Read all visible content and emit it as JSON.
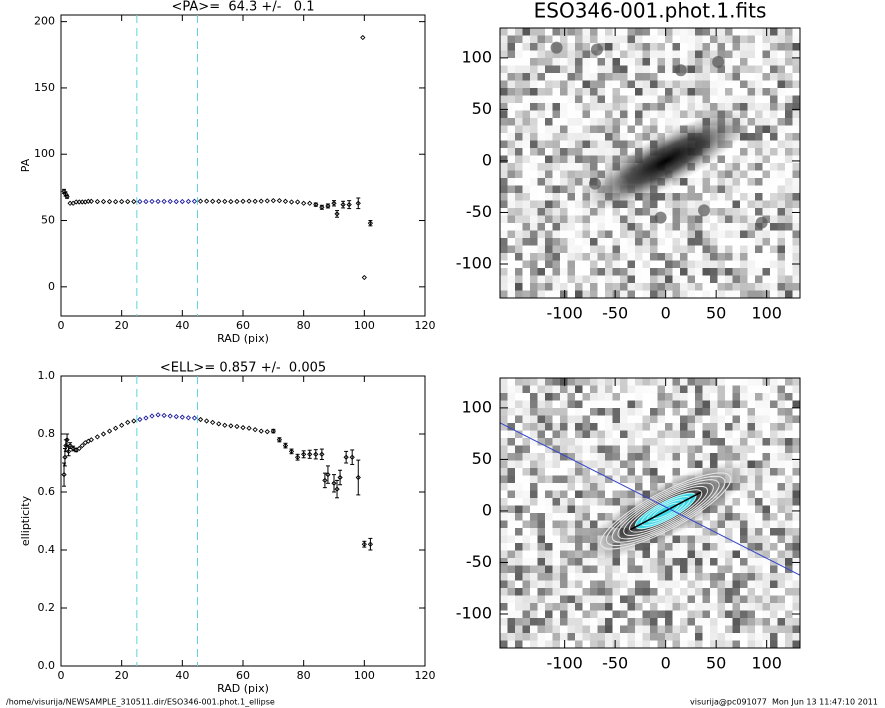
{
  "footer": {
    "left": "/home/visurija/NEWSAMPLE_310511.dir/ESO346-001.phot.1_ellipse",
    "right": "visurija@pc091077  Mon Jun 13 11:47:10 2011"
  },
  "chart_data": [
    {
      "type": "scatter",
      "title": "<PA>=  64.3 +/-   0.1",
      "xlabel": "RAD (pix)",
      "ylabel": "PA",
      "xlim": [
        0,
        120
      ],
      "ylim": [
        -22,
        205
      ],
      "xticks": [
        0,
        20,
        40,
        60,
        80,
        100,
        120
      ],
      "yticks": [
        0,
        50,
        100,
        150,
        200
      ],
      "vlines": [
        25,
        45
      ],
      "vline_color": "#5fd3e0",
      "series": [
        {
          "color": "#000000",
          "x": [
            1,
            1.5,
            2,
            3,
            4,
            5,
            6,
            7,
            8,
            9,
            10,
            12,
            14,
            16,
            18,
            20,
            22,
            24
          ],
          "values": [
            72,
            70,
            68,
            63,
            63,
            64,
            64,
            64,
            64,
            64.5,
            64.5,
            64.3,
            64.3,
            64.3,
            64.2,
            64.3,
            64.3,
            64.3
          ],
          "errors": [
            1.5,
            1.5,
            1.2,
            1,
            1,
            0.8,
            0.8,
            0.8,
            0.6,
            0.6,
            0.6,
            0.5,
            0.5,
            0.5,
            0.5,
            0.5,
            0.5,
            0.5
          ]
        },
        {
          "color": "#1a1aa0",
          "x": [
            26,
            28,
            30,
            32,
            34,
            36,
            38,
            40,
            42,
            44
          ],
          "values": [
            64.3,
            64.3,
            64.4,
            64.4,
            64.4,
            64.4,
            64.3,
            64.3,
            64.4,
            64.5
          ],
          "errors": [
            0.3,
            0.3,
            0.3,
            0.3,
            0.3,
            0.3,
            0.3,
            0.3,
            0.3,
            0.3
          ]
        },
        {
          "color": "#000000",
          "x": [
            46,
            48,
            50,
            52,
            54,
            56,
            58,
            60,
            62,
            64,
            66,
            68,
            70,
            72,
            74,
            76,
            78,
            80,
            82,
            84,
            86,
            88,
            90,
            91,
            93,
            95,
            98,
            99.5,
            100,
            102
          ],
          "values": [
            64.6,
            64.6,
            64.5,
            64.5,
            64.4,
            64.3,
            64.4,
            64.5,
            64.6,
            64.5,
            64.6,
            64.8,
            65,
            65,
            64.5,
            64,
            64,
            63,
            63,
            62,
            60,
            61,
            63,
            55,
            62,
            62,
            63,
            188,
            7,
            48
          ],
          "errors": [
            0.4,
            0.4,
            0.4,
            0.4,
            0.4,
            0.4,
            0.5,
            0.5,
            0.5,
            0.5,
            0.6,
            0.6,
            0.6,
            0.7,
            0.7,
            0.8,
            0.8,
            1,
            1,
            1.2,
            1.5,
            1.5,
            2,
            2.5,
            2.5,
            3,
            4,
            1,
            1,
            2
          ]
        }
      ]
    },
    {
      "type": "scatter",
      "title": "<ELL>= 0.857 +/-  0.005",
      "xlabel": "RAD (pix)",
      "ylabel": "ellipticity",
      "xlim": [
        0,
        120
      ],
      "ylim": [
        0,
        1
      ],
      "xticks": [
        0,
        20,
        40,
        60,
        80,
        100,
        120
      ],
      "yticks": [
        {
          "value": 0,
          "label": "0.0"
        },
        0.2,
        0.4,
        0.6,
        0.8,
        {
          "value": 1,
          "label": "1.0"
        }
      ],
      "vlines": [
        25,
        45
      ],
      "vline_color": "#5fd3e0",
      "series": [
        {
          "color": "#000000",
          "x": [
            1,
            1.3,
            1.6,
            2,
            2.5,
            3,
            4,
            5,
            6,
            7,
            8,
            9,
            10,
            12,
            14,
            16,
            18,
            20,
            22,
            24
          ],
          "values": [
            0.66,
            0.72,
            0.76,
            0.78,
            0.74,
            0.76,
            0.75,
            0.745,
            0.75,
            0.76,
            0.77,
            0.775,
            0.78,
            0.79,
            0.8,
            0.81,
            0.82,
            0.83,
            0.84,
            0.845
          ],
          "errors": [
            0.04,
            0.03,
            0.02,
            0.02,
            0.015,
            0.01,
            0.008,
            0.006,
            0.005,
            0.005,
            0.005,
            0.004,
            0.004,
            0.004,
            0.004,
            0.003,
            0.003,
            0.003,
            0.003,
            0.003
          ]
        },
        {
          "color": "#1a1aa0",
          "x": [
            26,
            28,
            30,
            32,
            34,
            36,
            38,
            40,
            42,
            44
          ],
          "values": [
            0.85,
            0.855,
            0.862,
            0.866,
            0.864,
            0.862,
            0.86,
            0.858,
            0.856,
            0.855
          ],
          "errors": [
            0.003,
            0.003,
            0.003,
            0.003,
            0.003,
            0.003,
            0.003,
            0.003,
            0.003,
            0.003
          ]
        },
        {
          "color": "#000000",
          "x": [
            46,
            48,
            50,
            52,
            54,
            56,
            58,
            60,
            62,
            64,
            66,
            68,
            70,
            72,
            74,
            76,
            78,
            80,
            82,
            84,
            86,
            87,
            88,
            90,
            91,
            92,
            94,
            96,
            98,
            100,
            102
          ],
          "values": [
            0.85,
            0.845,
            0.84,
            0.835,
            0.83,
            0.828,
            0.826,
            0.822,
            0.82,
            0.815,
            0.81,
            0.808,
            0.81,
            0.78,
            0.76,
            0.74,
            0.72,
            0.73,
            0.73,
            0.73,
            0.73,
            0.64,
            0.66,
            0.63,
            0.61,
            0.65,
            0.72,
            0.72,
            0.65,
            0.42,
            0.42
          ],
          "errors": [
            0.003,
            0.003,
            0.003,
            0.003,
            0.004,
            0.004,
            0.004,
            0.004,
            0.004,
            0.005,
            0.005,
            0.005,
            0.006,
            0.007,
            0.008,
            0.008,
            0.01,
            0.012,
            0.014,
            0.016,
            0.018,
            0.025,
            0.03,
            0.03,
            0.03,
            0.025,
            0.02,
            0.025,
            0.06,
            0.01,
            0.02
          ]
        }
      ]
    },
    {
      "type": "image",
      "title": "ESO346-001.phot.1.fits",
      "xlim": [
        -164,
        133
      ],
      "ylim": [
        -133,
        129
      ],
      "xticks": [
        -100,
        -50,
        0,
        50,
        100
      ],
      "yticks": [
        -100,
        -50,
        0,
        50,
        100
      ]
    },
    {
      "type": "image",
      "contours": true,
      "xlim": [
        -164,
        133
      ],
      "ylim": [
        -133,
        129
      ],
      "xticks": [
        -100,
        -50,
        0,
        50,
        100
      ],
      "yticks": [
        -100,
        -50,
        0,
        50,
        100
      ]
    }
  ]
}
